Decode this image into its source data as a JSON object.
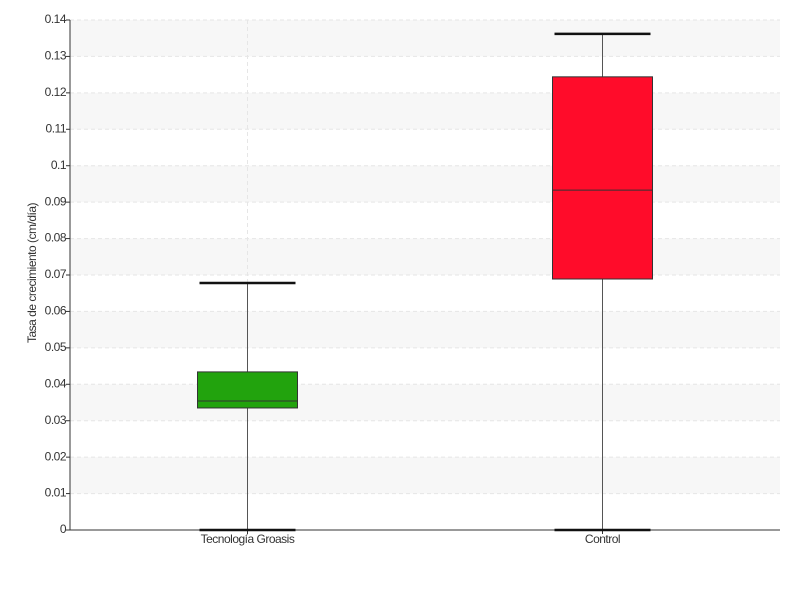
{
  "chart_data": {
    "type": "box",
    "y_label": "Tasa de crecimiento (cm/día)",
    "categories": [
      "Tecnología Groasis",
      "Control"
    ],
    "boxes": [
      {
        "min": 0,
        "q1": 0.0335,
        "median": 0.0354,
        "q3": 0.0434,
        "max": 0.0678,
        "color": "#22a30d"
      },
      {
        "min": 0,
        "q1": 0.0689,
        "median": 0.0933,
        "q3": 0.1244,
        "max": 0.1362,
        "color": "#ff0c2a"
      }
    ],
    "ylim": [
      0,
      0.14
    ],
    "yticks": [
      0,
      0.01,
      0.02,
      0.03,
      0.04,
      0.05,
      0.06,
      0.07,
      0.08,
      0.09,
      0.1,
      0.11,
      0.12,
      0.13,
      0.14
    ],
    "grid": true
  }
}
